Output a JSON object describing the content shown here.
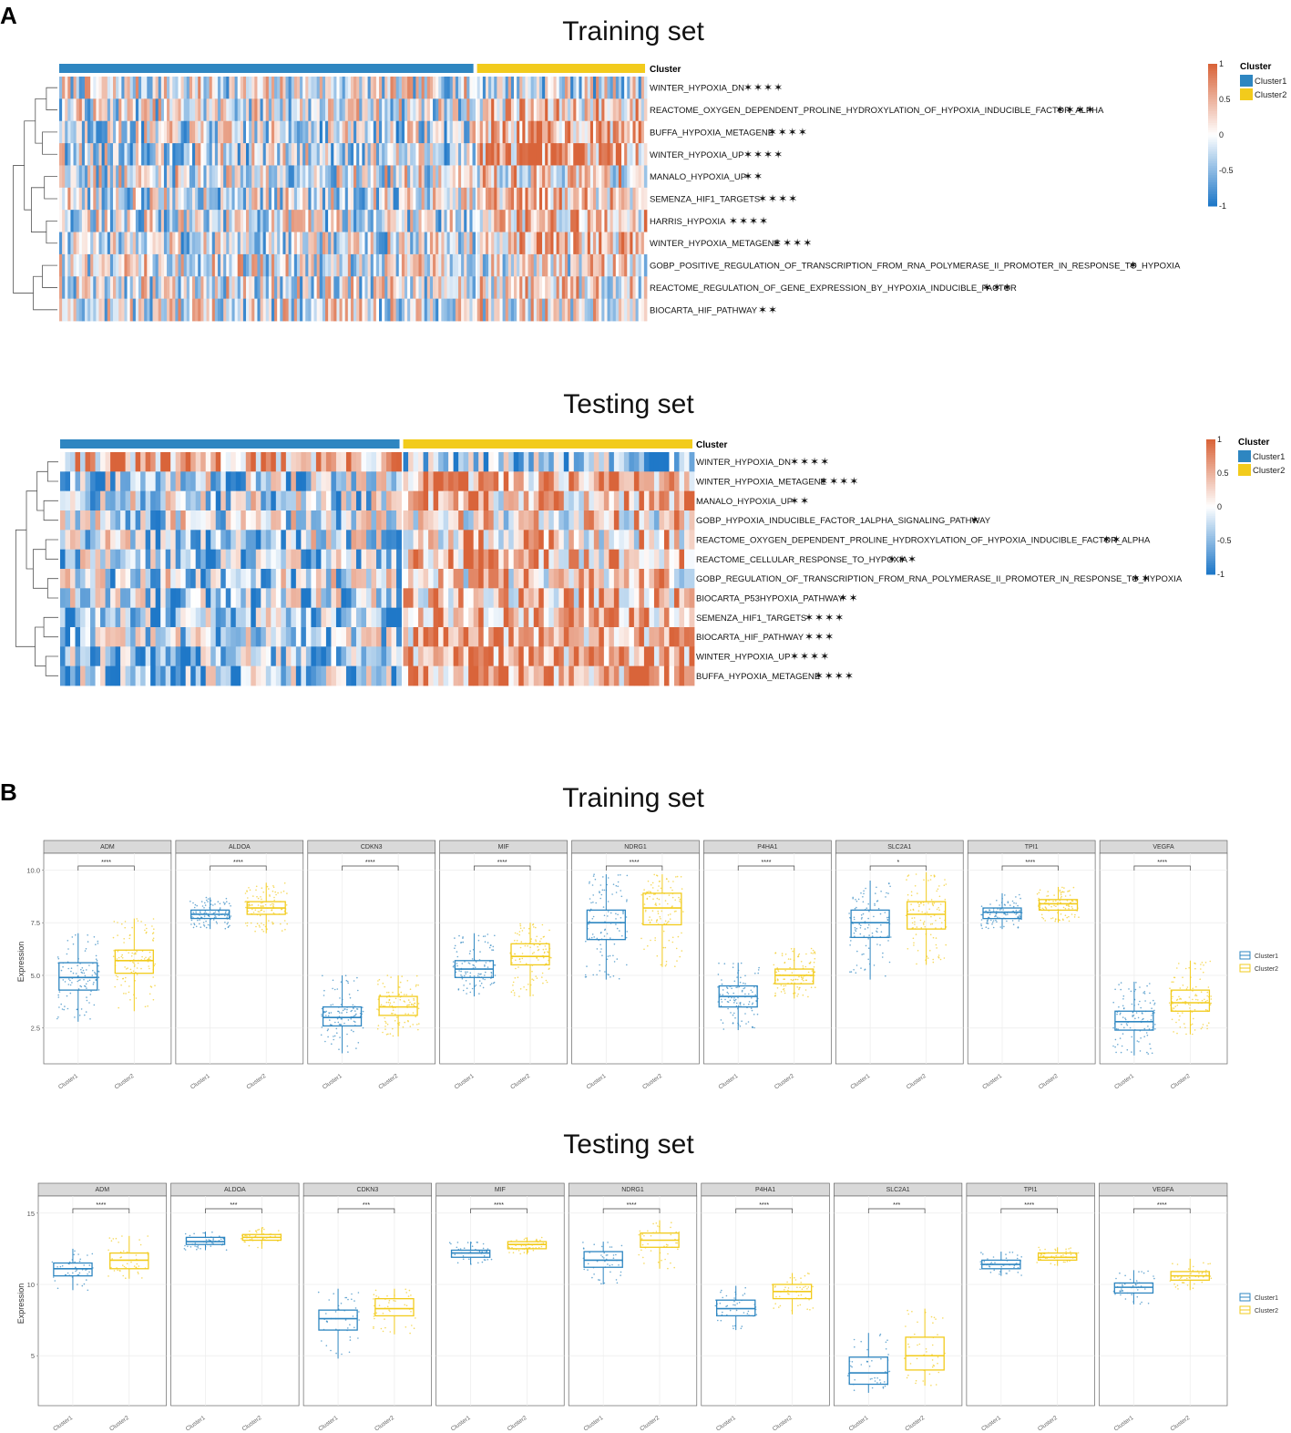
{
  "colors": {
    "cluster1": "#2E86C1",
    "cluster2": "#F2CB1C",
    "high": "#D9643A",
    "mid": "#FFFFFF",
    "low": "#1F78C8",
    "facet_strip": "#D9D9D9"
  },
  "panel_a": {
    "label": "A",
    "training": {
      "title": "Training set",
      "cluster_track_label": "Cluster",
      "n_cluster1": 147,
      "n_cluster2": 60,
      "rows": [
        {
          "name": "WINTER_HYPOXIA_DN",
          "sig": "✶✶✶✶",
          "c1": -0.05,
          "c2": -0.1
        },
        {
          "name": "REACTOME_OXYGEN_DEPENDENT_PROLINE_HYDROXYLATION_OF_HYPOXIA_INDUCIBLE_FACTOR_ALPHA",
          "sig": "✶✶✶✶",
          "c1": -0.05,
          "c2": 0.3
        },
        {
          "name": "BUFFA_HYPOXIA_METAGENE",
          "sig": "✶✶✶✶",
          "c1": -0.15,
          "c2": 0.55
        },
        {
          "name": "WINTER_HYPOXIA_UP",
          "sig": "✶✶✶✶",
          "c1": -0.15,
          "c2": 0.55
        },
        {
          "name": "MANALO_HYPOXIA_UP",
          "sig": "✶✶",
          "c1": -0.05,
          "c2": 0.15
        },
        {
          "name": "SEMENZA_HIF1_TARGETS",
          "sig": "✶✶✶✶",
          "c1": -0.1,
          "c2": 0.35
        },
        {
          "name": "HARRIS_HYPOXIA",
          "sig": "✶✶✶✶",
          "c1": -0.1,
          "c2": 0.35
        },
        {
          "name": "WINTER_HYPOXIA_METAGENE",
          "sig": "✶✶✶✶",
          "c1": -0.1,
          "c2": 0.4
        },
        {
          "name": "GOBP_POSITIVE_REGULATION_OF_TRANSCRIPTION_FROM_RNA_POLYMERASE_II_PROMOTER_IN_RESPONSE_TO_HYPOXIA",
          "sig": "✶",
          "c1": 0.0,
          "c2": 0.05
        },
        {
          "name": "REACTOME_REGULATION_OF_GENE_EXPRESSION_BY_HYPOXIA_INDUCIBLE_FACTOR",
          "sig": "✶✶✶",
          "c1": -0.05,
          "c2": 0.15
        },
        {
          "name": "BIOCARTA_HIF_PATHWAY",
          "sig": "✶✶",
          "c1": -0.05,
          "c2": 0.1
        }
      ]
    },
    "testing": {
      "title": "Testing set",
      "cluster_track_label": "Cluster",
      "n_cluster1": 68,
      "n_cluster2": 58,
      "rows": [
        {
          "name": "WINTER_HYPOXIA_DN",
          "sig": "✶✶✶✶",
          "c1": 0.45,
          "c2": -0.45
        },
        {
          "name": "WINTER_HYPOXIA_METAGENE",
          "sig": "✶✶✶✶",
          "c1": -0.3,
          "c2": 0.55
        },
        {
          "name": "MANALO_HYPOXIA_UP",
          "sig": "✶✶",
          "c1": -0.2,
          "c2": 0.35
        },
        {
          "name": "GOBP_HYPOXIA_INDUCIBLE_FACTOR_1ALPHA_SIGNALING_PATHWAY",
          "sig": "✶",
          "c1": -0.15,
          "c2": 0.2
        },
        {
          "name": "REACTOME_OXYGEN_DEPENDENT_PROLINE_HYDROXYLATION_OF_HYPOXIA_INDUCIBLE_FACTOR_ALPHA",
          "sig": "✶✶",
          "c1": -0.2,
          "c2": 0.3
        },
        {
          "name": "REACTOME_CELLULAR_RESPONSE_TO_HYPOXIA",
          "sig": "✶✶✶",
          "c1": -0.25,
          "c2": 0.4
        },
        {
          "name": "GOBP_REGULATION_OF_TRANSCRIPTION_FROM_RNA_POLYMERASE_II_PROMOTER_IN_RESPONSE_TO_HYPOXIA",
          "sig": "✶✶",
          "c1": -0.2,
          "c2": 0.3
        },
        {
          "name": "BIOCARTA_P53HYPOXIA_PATHWAY",
          "sig": "✶✶",
          "c1": -0.3,
          "c2": 0.45
        },
        {
          "name": "SEMENZA_HIF1_TARGETS",
          "sig": "✶✶✶✶",
          "c1": -0.35,
          "c2": 0.55
        },
        {
          "name": "BIOCARTA_HIF_PATHWAY",
          "sig": "✶✶✶",
          "c1": -0.3,
          "c2": 0.45
        },
        {
          "name": "WINTER_HYPOXIA_UP",
          "sig": "✶✶✶✶",
          "c1": -0.4,
          "c2": 0.6
        },
        {
          "name": "BUFFA_HYPOXIA_METAGENE",
          "sig": "✶✶✶✶",
          "c1": -0.4,
          "c2": 0.6
        }
      ]
    },
    "colorbar": {
      "ticks": [
        "1",
        "0.5",
        "0",
        "-0.5",
        "-1"
      ]
    },
    "legend": {
      "title": "Cluster",
      "items": [
        "Cluster1",
        "Cluster2"
      ]
    }
  },
  "panel_b": {
    "label": "B",
    "legend": {
      "items": [
        "Cluster1",
        "Cluster2"
      ]
    },
    "ylabel": "Expression",
    "xticks": [
      "Cluster1",
      "Cluster2"
    ]
  },
  "chart_data": [
    {
      "type": "heatmap",
      "title": "Training set",
      "rows": [
        "WINTER_HYPOXIA_DN",
        "REACTOME_OXYGEN_DEPENDENT_PROLINE_HYDROXYLATION_OF_HYPOXIA_INDUCIBLE_FACTOR_ALPHA",
        "BUFFA_HYPOXIA_METAGENE",
        "WINTER_HYPOXIA_UP",
        "MANALO_HYPOXIA_UP",
        "SEMENZA_HIF1_TARGETS",
        "HARRIS_HYPOXIA",
        "WINTER_HYPOXIA_METAGENE",
        "GOBP_POSITIVE_REGULATION_OF_TRANSCRIPTION_FROM_RNA_POLYMERASE_II_PROMOTER_IN_RESPONSE_TO_HYPOXIA",
        "REACTOME_REGULATION_OF_GENE_EXPRESSION_BY_HYPOXIA_INDUCIBLE_FACTOR",
        "BIOCARTA_HIF_PATHWAY"
      ],
      "column_groups": [
        "Cluster1",
        "Cluster2"
      ],
      "color_range": [
        -1,
        1
      ]
    },
    {
      "type": "heatmap",
      "title": "Testing set",
      "rows": [
        "WINTER_HYPOXIA_DN",
        "WINTER_HYPOXIA_METAGENE",
        "MANALO_HYPOXIA_UP",
        "GOBP_HYPOXIA_INDUCIBLE_FACTOR_1ALPHA_SIGNALING_PATHWAY",
        "REACTOME_OXYGEN_DEPENDENT_PROLINE_HYDROXYLATION_OF_HYPOXIA_INDUCIBLE_FACTOR_ALPHA",
        "REACTOME_CELLULAR_RESPONSE_TO_HYPOXIA",
        "GOBP_REGULATION_OF_TRANSCRIPTION_FROM_RNA_POLYMERASE_II_PROMOTER_IN_RESPONSE_TO_HYPOXIA",
        "BIOCARTA_P53HYPOXIA_PATHWAY",
        "SEMENZA_HIF1_TARGETS",
        "BIOCARTA_HIF_PATHWAY",
        "WINTER_HYPOXIA_UP",
        "BUFFA_HYPOXIA_METAGENE"
      ],
      "column_groups": [
        "Cluster1",
        "Cluster2"
      ],
      "color_range": [
        -1,
        1
      ]
    },
    {
      "type": "box",
      "title": "Training set",
      "ylabel": "Expression",
      "ylim": [
        0.8,
        10.8
      ],
      "yticks": [
        2.5,
        5.0,
        7.5,
        10.0
      ],
      "ytick_labels": [
        "2.5",
        "5.0",
        "7.5",
        "10.0"
      ],
      "categories": [
        "Cluster1",
        "Cluster2"
      ],
      "facets": [
        {
          "gene": "ADM",
          "sig": "****",
          "c1": {
            "min": 2.8,
            "q1": 4.3,
            "med": 4.9,
            "q3": 5.6,
            "max": 7.0
          },
          "c2": {
            "min": 3.3,
            "q1": 5.1,
            "med": 5.7,
            "q3": 6.2,
            "max": 7.7
          }
        },
        {
          "gene": "ALDOA",
          "sig": "****",
          "c1": {
            "min": 7.2,
            "q1": 7.7,
            "med": 7.9,
            "q3": 8.1,
            "max": 8.7
          },
          "c2": {
            "min": 7.0,
            "q1": 7.9,
            "med": 8.2,
            "q3": 8.5,
            "max": 9.4
          }
        },
        {
          "gene": "CDKN3",
          "sig": "****",
          "c1": {
            "min": 1.3,
            "q1": 2.6,
            "med": 3.0,
            "q3": 3.5,
            "max": 5.0
          },
          "c2": {
            "min": 2.1,
            "q1": 3.1,
            "med": 3.5,
            "q3": 4.0,
            "max": 5.0
          }
        },
        {
          "gene": "MIF",
          "sig": "****",
          "c1": {
            "min": 4.0,
            "q1": 4.9,
            "med": 5.3,
            "q3": 5.7,
            "max": 7.0
          },
          "c2": {
            "min": 4.0,
            "q1": 5.5,
            "med": 5.9,
            "q3": 6.5,
            "max": 7.5
          }
        },
        {
          "gene": "NDRG1",
          "sig": "****",
          "c1": {
            "min": 4.8,
            "q1": 6.7,
            "med": 7.5,
            "q3": 8.1,
            "max": 9.8
          },
          "c2": {
            "min": 5.4,
            "q1": 7.4,
            "med": 8.2,
            "q3": 8.9,
            "max": 9.8
          }
        },
        {
          "gene": "P4HA1",
          "sig": "****",
          "c1": {
            "min": 2.4,
            "q1": 3.5,
            "med": 4.0,
            "q3": 4.5,
            "max": 5.6
          },
          "c2": {
            "min": 3.9,
            "q1": 4.6,
            "med": 5.0,
            "q3": 5.3,
            "max": 6.3
          }
        },
        {
          "gene": "SLC2A1",
          "sig": "*",
          "c1": {
            "min": 4.8,
            "q1": 6.8,
            "med": 7.5,
            "q3": 8.1,
            "max": 9.5
          },
          "c2": {
            "min": 5.5,
            "q1": 7.2,
            "med": 7.9,
            "q3": 8.5,
            "max": 9.9
          }
        },
        {
          "gene": "TPI1",
          "sig": "****",
          "c1": {
            "min": 7.2,
            "q1": 7.7,
            "med": 8.0,
            "q3": 8.2,
            "max": 8.9
          },
          "c2": {
            "min": 7.5,
            "q1": 8.1,
            "med": 8.4,
            "q3": 8.6,
            "max": 9.2
          }
        },
        {
          "gene": "VEGFA",
          "sig": "****",
          "c1": {
            "min": 1.2,
            "q1": 2.4,
            "med": 2.8,
            "q3": 3.3,
            "max": 4.7
          },
          "c2": {
            "min": 2.2,
            "q1": 3.3,
            "med": 3.7,
            "q3": 4.3,
            "max": 5.7
          }
        }
      ]
    },
    {
      "type": "box",
      "title": "Testing set",
      "ylabel": "Expression",
      "ylim": [
        1.5,
        16.2
      ],
      "yticks": [
        5,
        10,
        15
      ],
      "ytick_labels": [
        "5",
        "10",
        "15"
      ],
      "categories": [
        "Cluster1",
        "Cluster2"
      ],
      "facets": [
        {
          "gene": "ADM",
          "sig": "****",
          "c1": {
            "min": 9.6,
            "q1": 10.6,
            "med": 11.1,
            "q3": 11.5,
            "max": 12.5
          },
          "c2": {
            "min": 10.4,
            "q1": 11.1,
            "med": 11.7,
            "q3": 12.2,
            "max": 13.4
          }
        },
        {
          "gene": "ALDOA",
          "sig": "***",
          "c1": {
            "min": 12.4,
            "q1": 12.8,
            "med": 13.0,
            "q3": 13.3,
            "max": 13.7
          },
          "c2": {
            "min": 12.5,
            "q1": 13.1,
            "med": 13.3,
            "q3": 13.5,
            "max": 14.0
          }
        },
        {
          "gene": "CDKN3",
          "sig": "***",
          "c1": {
            "min": 4.8,
            "q1": 6.8,
            "med": 7.6,
            "q3": 8.2,
            "max": 9.7
          },
          "c2": {
            "min": 6.5,
            "q1": 7.8,
            "med": 8.3,
            "q3": 9.0,
            "max": 9.7
          }
        },
        {
          "gene": "MIF",
          "sig": "****",
          "c1": {
            "min": 11.4,
            "q1": 11.9,
            "med": 12.2,
            "q3": 12.4,
            "max": 13.0
          },
          "c2": {
            "min": 12.1,
            "q1": 12.5,
            "med": 12.8,
            "q3": 13.0,
            "max": 13.3
          }
        },
        {
          "gene": "NDRG1",
          "sig": "****",
          "c1": {
            "min": 10.0,
            "q1": 11.2,
            "med": 11.7,
            "q3": 12.3,
            "max": 13.0
          },
          "c2": {
            "min": 11.1,
            "q1": 12.6,
            "med": 13.1,
            "q3": 13.6,
            "max": 14.5
          }
        },
        {
          "gene": "P4HA1",
          "sig": "****",
          "c1": {
            "min": 6.8,
            "q1": 7.8,
            "med": 8.3,
            "q3": 8.9,
            "max": 9.9
          },
          "c2": {
            "min": 7.9,
            "q1": 9.0,
            "med": 9.5,
            "q3": 10.0,
            "max": 10.8
          }
        },
        {
          "gene": "SLC2A1",
          "sig": "***",
          "c1": {
            "min": 2.4,
            "q1": 3.0,
            "med": 3.8,
            "q3": 4.9,
            "max": 6.6
          },
          "c2": {
            "min": 2.9,
            "q1": 4.0,
            "med": 5.0,
            "q3": 6.3,
            "max": 8.3
          }
        },
        {
          "gene": "TPI1",
          "sig": "****",
          "c1": {
            "min": 10.6,
            "q1": 11.1,
            "med": 11.4,
            "q3": 11.7,
            "max": 12.3
          },
          "c2": {
            "min": 11.3,
            "q1": 11.7,
            "med": 11.9,
            "q3": 12.2,
            "max": 12.6
          }
        },
        {
          "gene": "VEGFA",
          "sig": "****",
          "c1": {
            "min": 8.6,
            "q1": 9.4,
            "med": 9.8,
            "q3": 10.1,
            "max": 11.0
          },
          "c2": {
            "min": 9.6,
            "q1": 10.3,
            "med": 10.6,
            "q3": 10.9,
            "max": 11.8
          }
        }
      ]
    }
  ]
}
